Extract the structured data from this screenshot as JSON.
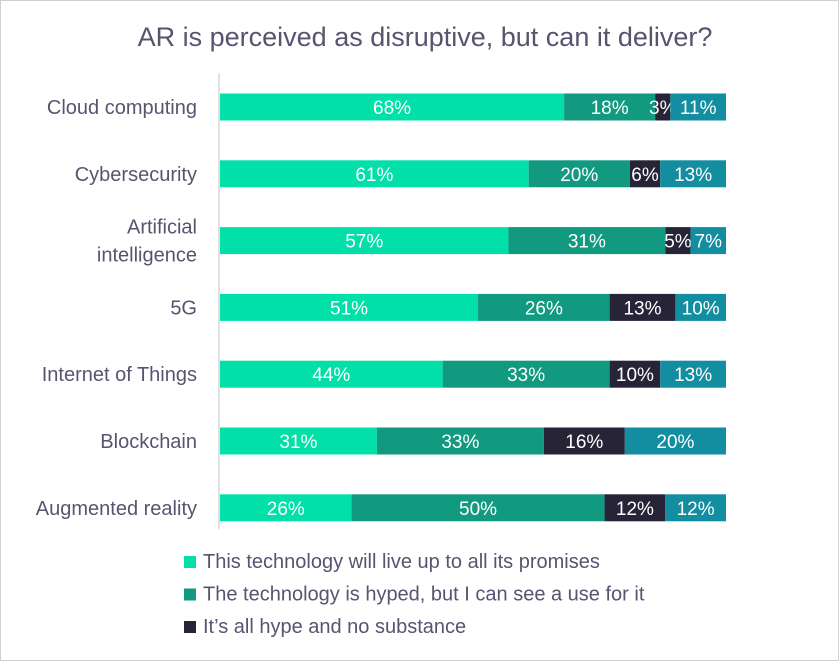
{
  "chart_data": {
    "type": "bar",
    "orientation": "horizontal-stacked-100",
    "title": "AR is perceived as disruptive, but can it deliver?",
    "categories": [
      [
        "Cloud computing"
      ],
      [
        "Cybersecurity"
      ],
      [
        "Artificial",
        "intelligence"
      ],
      [
        "5G"
      ],
      [
        "Internet of Things"
      ],
      [
        "Blockchain"
      ],
      [
        "Augmented reality"
      ]
    ],
    "series": [
      {
        "name": "This technology will live up to all its promises",
        "color": "#00e0a8",
        "values": [
          68,
          61,
          57,
          51,
          44,
          31,
          26
        ],
        "labels": [
          "68%",
          "61%",
          "57%",
          "51%",
          "44%",
          "31%",
          "26%"
        ]
      },
      {
        "name": "The technology is hyped, but I can see a use for it",
        "color": "#129a80",
        "values": [
          18,
          20,
          31,
          26,
          33,
          33,
          50
        ],
        "labels": [
          "18%",
          "20%",
          "31%",
          "26%",
          "33%",
          "33%",
          "50%"
        ]
      },
      {
        "name": "It’s all hype and no substance",
        "color": "#272438",
        "values": [
          3,
          6,
          5,
          13,
          10,
          16,
          12
        ],
        "labels": [
          "3%",
          "6%",
          "5%",
          "13%",
          "10%",
          "16%",
          "12%"
        ]
      },
      {
        "color": "#138da0",
        "values": [
          11,
          13,
          7,
          10,
          13,
          20,
          12
        ],
        "labels": [
          "11%",
          "13%",
          "7%",
          "10%",
          "13%",
          "20%",
          "12%"
        ]
      }
    ],
    "xlim": [
      0,
      100
    ],
    "legend_position": "bottom",
    "grid": false
  },
  "colors": {
    "text": "#5a5370",
    "axis": "#d9d9d9"
  }
}
